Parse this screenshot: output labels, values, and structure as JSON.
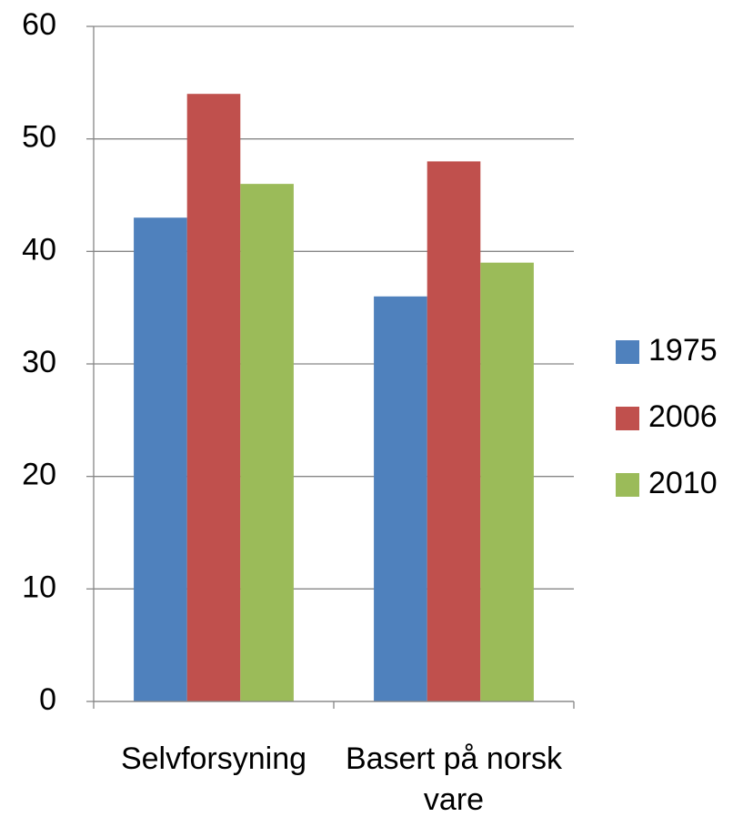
{
  "chart_data": {
    "type": "bar",
    "categories": [
      "Selvforsyning",
      "Basert på norsk vare"
    ],
    "series": [
      {
        "name": "1975",
        "color": "#4f81bd",
        "values": [
          43,
          36
        ]
      },
      {
        "name": "2006",
        "color": "#c0504d",
        "values": [
          54,
          48
        ]
      },
      {
        "name": "2010",
        "color": "#9bbb59",
        "values": [
          46,
          39
        ]
      }
    ],
    "ylim": [
      0,
      60
    ],
    "yticks": [
      0,
      10,
      20,
      30,
      40,
      50,
      60
    ],
    "grid": true,
    "legend": "right"
  }
}
